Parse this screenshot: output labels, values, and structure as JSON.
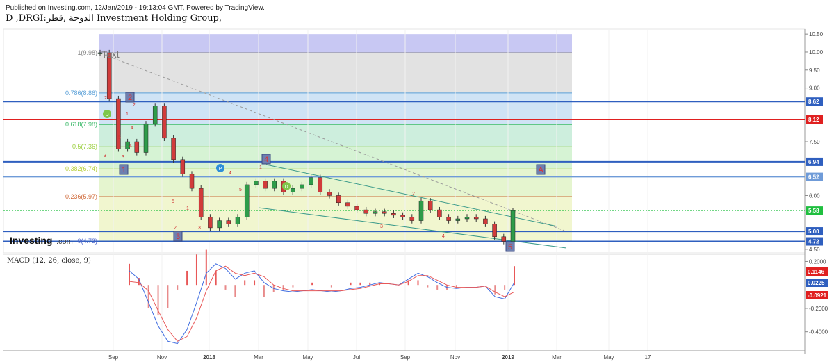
{
  "header": {
    "published": "Published on Investing.com, 12/Jan/2019 - 19:13:04 GMT, Powered by TradingView.",
    "symbol_line": "D ,DRGI:الدوحة ,قطر Investment Holding Group,"
  },
  "watermark": {
    "brand": "Investing",
    "suffix": ".com"
  },
  "colors": {
    "blue_line": "#3b6fc9",
    "red_line": "#e02020",
    "candle_up": "#2e9c4a",
    "candle_down": "#d13b3b",
    "macd_line": "#3d6be0",
    "signal_line": "#e85858",
    "last_price": "#1fbf3f"
  },
  "chart_data": [
    {
      "type": "candlestick",
      "title": "D ,DRGI:الدوحة ,قطر Investment Holding Group,",
      "x_labels": [
        "Sep",
        "Nov",
        "2018",
        "Mar",
        "May",
        "Jul",
        "Sep",
        "Nov",
        "2019",
        "Mar",
        "May",
        "17"
      ],
      "y_ticks": [
        "10.50",
        "10.00",
        "9.50",
        "9.00",
        "7.50",
        "6.00",
        "4.50"
      ],
      "ylim": [
        4.5,
        10.5
      ],
      "price_series": [
        [
          "Aug",
          9.98
        ],
        [
          "Aug",
          8.7
        ],
        [
          "Aug",
          7.3
        ],
        [
          "Sep",
          7.5
        ],
        [
          "Sep",
          7.2
        ],
        [
          "Sep",
          8.0
        ],
        [
          "Sep",
          8.5
        ],
        [
          "Oct",
          7.6
        ],
        [
          "Oct",
          7.0
        ],
        [
          "Oct",
          6.6
        ],
        [
          "Oct",
          6.2
        ],
        [
          "Nov",
          5.4
        ],
        [
          "Nov",
          5.1
        ],
        [
          "Nov",
          5.3
        ],
        [
          "Dec",
          5.2
        ],
        [
          "Dec",
          5.4
        ],
        [
          "Dec",
          6.3
        ],
        [
          "2018",
          6.4
        ],
        [
          "2018",
          6.2
        ],
        [
          "Feb",
          6.4
        ],
        [
          "Feb",
          6.1
        ],
        [
          "Mar",
          6.2
        ],
        [
          "Mar",
          6.3
        ],
        [
          "Mar",
          6.5
        ],
        [
          "Mar",
          6.1
        ],
        [
          "Apr",
          6.0
        ],
        [
          "Apr",
          5.8
        ],
        [
          "May",
          5.7
        ],
        [
          "May",
          5.6
        ],
        [
          "Jun",
          5.5
        ],
        [
          "Jun",
          5.55
        ],
        [
          "Jul",
          5.5
        ],
        [
          "Jul",
          5.45
        ],
        [
          "Aug",
          5.4
        ],
        [
          "Aug",
          5.3
        ],
        [
          "Sep",
          5.85
        ],
        [
          "Sep",
          5.6
        ],
        [
          "Oct",
          5.4
        ],
        [
          "Oct",
          5.3
        ],
        [
          "Nov",
          5.35
        ],
        [
          "Nov",
          5.4
        ],
        [
          "Dec",
          5.35
        ],
        [
          "Dec",
          5.2
        ],
        [
          "Dec",
          4.85
        ],
        [
          "2019",
          4.72
        ],
        [
          "2019",
          5.58
        ]
      ],
      "fib_levels": [
        {
          "label": "1(9.98)",
          "value": 9.98
        },
        {
          "label": "0.786(8.86)",
          "value": 8.86
        },
        {
          "label": "0.618(7.98)",
          "value": 7.98
        },
        {
          "label": "0.5(7.36)",
          "value": 7.36
        },
        {
          "label": "0.382(6.74)",
          "value": 6.74
        },
        {
          "label": "0.236(5.97)",
          "value": 5.97
        },
        {
          "label": "0(4.73)",
          "value": 4.73
        }
      ],
      "h_lines": [
        {
          "value": 8.62,
          "label": "8.62",
          "color": "blue"
        },
        {
          "value": 8.12,
          "label": "8.12",
          "color": "red"
        },
        {
          "value": 6.94,
          "label": "6.94",
          "color": "blue"
        },
        {
          "value": 6.52,
          "label": "6.52",
          "color": "lightblue"
        },
        {
          "value": 5.0,
          "label": "5.00",
          "color": "blue"
        },
        {
          "value": 4.72,
          "label": "4.72",
          "color": "blue"
        }
      ],
      "last_price": {
        "value": 5.58,
        "label": "5.58"
      },
      "annotations": {
        "text_tool": "Text",
        "wave_boxes": [
          "2",
          "1",
          "4",
          "3",
          "5",
          "A"
        ],
        "bubbles": [
          "D",
          "P",
          "D"
        ],
        "small_labels": [
          "2",
          "5",
          "3",
          "1",
          "4",
          "2",
          "3",
          "4",
          "5",
          "1",
          "2",
          "3",
          "4",
          "5",
          "1",
          "2",
          "3",
          "4"
        ]
      }
    },
    {
      "type": "macd",
      "title": "MACD (12, 26, close, 9)",
      "y_ticks": [
        "0.2000",
        "-0.2000",
        "-0.4000"
      ],
      "ylim": [
        -0.55,
        0.25
      ],
      "value_tags": [
        {
          "label": "0.1146",
          "color": "red"
        },
        {
          "label": "0.0225",
          "color": "blue"
        },
        {
          "label": "-0.0921",
          "color": "red"
        }
      ],
      "macd": [
        0.12,
        0.05,
        -0.15,
        -0.35,
        -0.48,
        -0.5,
        -0.38,
        -0.15,
        0.1,
        0.18,
        0.14,
        0.05,
        0.1,
        0.12,
        0.02,
        -0.03,
        -0.05,
        -0.06,
        -0.05,
        -0.04,
        -0.05,
        -0.06,
        -0.05,
        -0.03,
        -0.02,
        0.0,
        0.02,
        0.01,
        0.0,
        0.05,
        0.1,
        0.07,
        0.02,
        -0.02,
        -0.03,
        -0.02,
        -0.02,
        -0.01,
        -0.1,
        -0.12,
        0.02
      ],
      "signal": [
        0.03,
        0.02,
        -0.05,
        -0.22,
        -0.38,
        -0.48,
        -0.44,
        -0.28,
        -0.05,
        0.12,
        0.16,
        0.1,
        0.08,
        0.1,
        0.07,
        0.0,
        -0.03,
        -0.05,
        -0.05,
        -0.05,
        -0.05,
        -0.05,
        -0.05,
        -0.04,
        -0.03,
        -0.01,
        0.01,
        0.01,
        0.0,
        0.03,
        0.08,
        0.08,
        0.04,
        0.0,
        -0.02,
        -0.02,
        -0.02,
        -0.01,
        -0.06,
        -0.1,
        -0.06
      ]
    }
  ]
}
